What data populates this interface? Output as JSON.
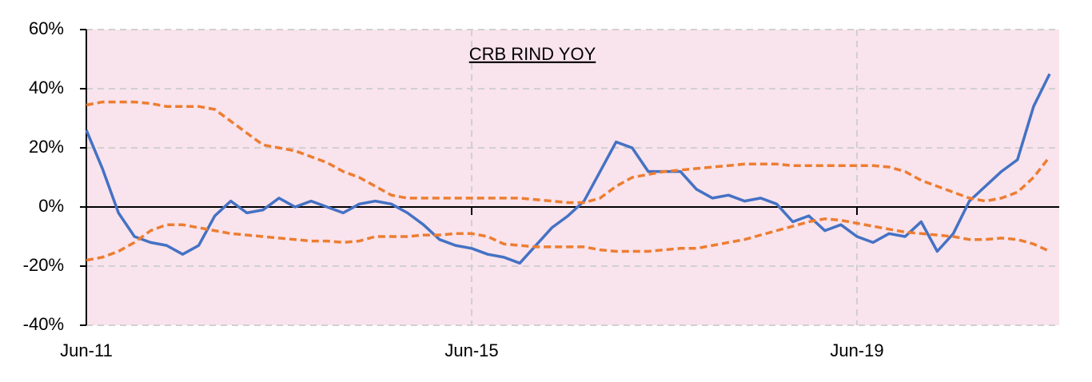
{
  "chart_data": {
    "type": "line",
    "title": "CRB RIND YOY",
    "categories": [
      "Jun-11",
      null,
      null,
      null,
      null,
      null,
      null,
      null,
      null,
      null,
      null,
      null,
      null,
      null,
      null,
      null,
      null,
      null,
      null,
      null,
      null,
      null,
      null,
      null,
      "Jun-15",
      null,
      null,
      null,
      null,
      null,
      null,
      null,
      null,
      null,
      null,
      null,
      null,
      null,
      null,
      null,
      null,
      null,
      null,
      null,
      null,
      null,
      null,
      null,
      "Jun-19",
      null,
      null,
      null,
      null,
      null,
      null,
      null,
      null,
      null,
      null,
      null,
      null
    ],
    "series": [
      {
        "color": "#4472c4",
        "dashed": false,
        "values": [
          26,
          13,
          -2,
          -10,
          -12,
          -13,
          -16,
          -13,
          -3,
          2,
          -2,
          -1,
          3,
          0,
          2,
          0,
          -2,
          1,
          2,
          1,
          -2,
          -6,
          -11,
          -13,
          -14,
          -16,
          -17,
          -19,
          -13,
          -7,
          -3,
          2,
          12,
          22,
          20,
          12,
          12,
          12,
          6,
          3,
          4,
          2,
          3,
          1,
          -5,
          -3,
          -8,
          -6,
          -10,
          -12,
          -9,
          -10,
          -5,
          -15,
          -9,
          2,
          7,
          12,
          16,
          34,
          45
        ]
      },
      {
        "color": "#ed7d31",
        "dashed": true,
        "values": [
          34.5,
          35.5,
          35.5,
          35.5,
          35,
          34,
          34,
          34,
          33,
          29,
          25,
          21,
          20,
          19,
          17,
          15,
          12,
          10,
          7,
          4,
          3,
          3,
          3,
          3,
          3,
          3,
          3,
          3,
          2.5,
          2,
          1.5,
          1.5,
          3,
          7,
          10,
          11,
          12,
          12.5,
          13,
          13.5,
          14,
          14.5,
          14.5,
          14.5,
          14,
          14,
          14,
          14,
          14,
          14,
          13.5,
          12,
          9,
          7,
          5,
          3,
          2,
          3,
          5,
          10,
          17
        ]
      },
      {
        "color": "#ed7d31",
        "dashed": true,
        "values": [
          -18,
          -17,
          -15,
          -12,
          -8,
          -6,
          -6,
          -7,
          -8,
          -9,
          -9.5,
          -10,
          -10.5,
          -11,
          -11.5,
          -11.5,
          -12,
          -11.5,
          -10,
          -10,
          -10,
          -9.5,
          -9.5,
          -9,
          -9,
          -10,
          -12.5,
          -13,
          -13.5,
          -13.5,
          -13.5,
          -13.5,
          -14.5,
          -15,
          -15,
          -15,
          -14.5,
          -14,
          -14,
          -13,
          -12,
          -11,
          -9.5,
          -8,
          -6.5,
          -5,
          -4,
          -4.5,
          -5.5,
          -6.5,
          -7.5,
          -8.5,
          -9,
          -9.5,
          -10,
          -11,
          -11,
          -10.5,
          -11,
          -12.5,
          -15
        ]
      }
    ],
    "ylim": [
      -40,
      60
    ],
    "yticks": [
      {
        "value": -40,
        "label": "-40%"
      },
      {
        "value": -20,
        "label": "-20%"
      },
      {
        "value": 0,
        "label": "0%"
      },
      {
        "value": 20,
        "label": "20%"
      },
      {
        "value": 40,
        "label": "40%"
      },
      {
        "value": 60,
        "label": "60%"
      }
    ],
    "grid": true,
    "background": "#f9e3ec"
  }
}
